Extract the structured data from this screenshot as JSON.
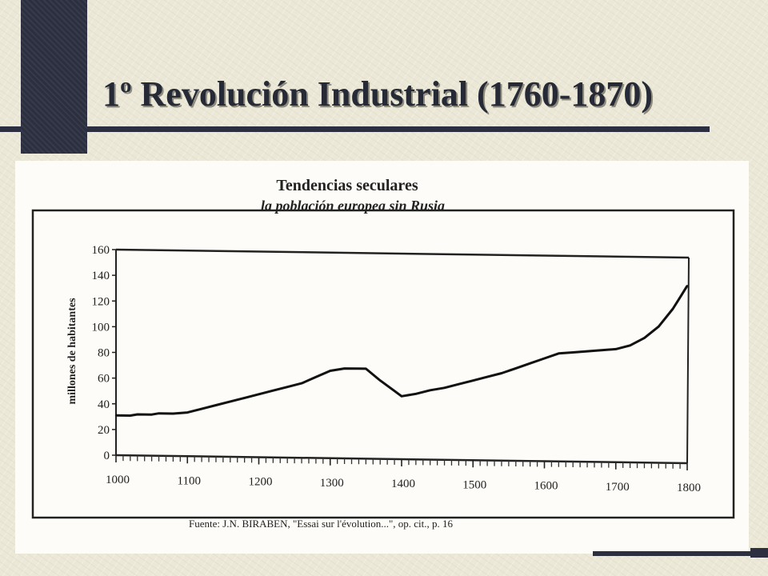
{
  "slide": {
    "title": "1º Revolución Industrial (1760-1870)"
  },
  "chart_data": {
    "type": "line",
    "title": "Tendencias seculares",
    "subtitle": "la población europea sin Rusia",
    "ylabel": "millones de habitantes",
    "xlabel": "",
    "source": "Fuente: J.N. BIRABEN, \"Essai sur l'évolution...\", op. cit., p. 16",
    "xlim": [
      1000,
      1800
    ],
    "ylim": [
      0,
      160
    ],
    "x_ticks": [
      "1000",
      "1100",
      "1200",
      "1300",
      "1400",
      "1500",
      "1600",
      "1700",
      "1800"
    ],
    "y_ticks": [
      "0",
      "20",
      "40",
      "60",
      "80",
      "100",
      "120",
      "140",
      "160"
    ],
    "grid": false,
    "series": [
      {
        "x": [
          1000,
          1020,
          1030,
          1050,
          1060,
          1080,
          1100,
          1120,
          1140,
          1160,
          1180,
          1200,
          1220,
          1240,
          1260,
          1280,
          1300,
          1320,
          1340,
          1350,
          1370,
          1390,
          1400,
          1420,
          1440,
          1460,
          1480,
          1500,
          1520,
          1540,
          1560,
          1580,
          1600,
          1620,
          1640,
          1660,
          1680,
          1700,
          1720,
          1740,
          1760,
          1780,
          1790,
          1800
        ],
        "y": [
          31,
          31,
          32,
          32,
          33,
          33,
          34,
          37,
          40,
          43,
          46,
          49,
          52,
          55,
          58,
          63,
          68,
          70,
          70,
          70,
          61,
          53,
          49,
          51,
          54,
          56,
          59,
          62,
          65,
          68,
          72,
          76,
          80,
          84,
          85,
          86,
          87,
          88,
          91,
          97,
          106,
          120,
          129,
          138
        ]
      }
    ]
  }
}
